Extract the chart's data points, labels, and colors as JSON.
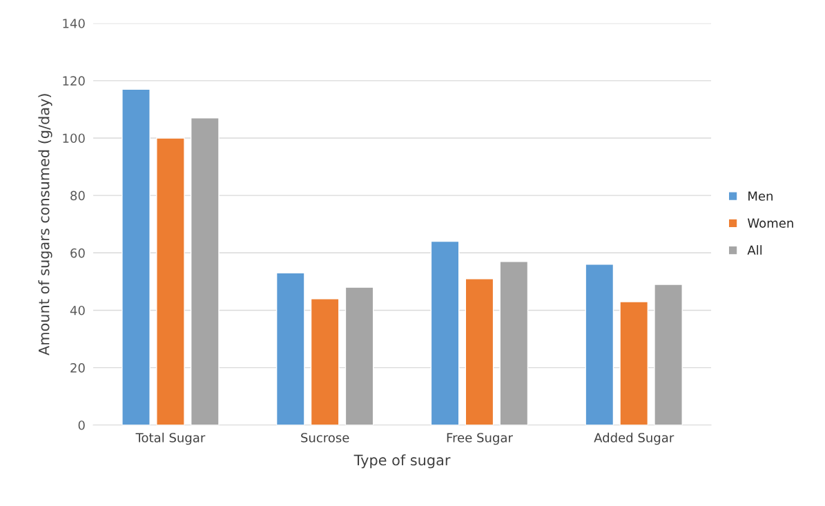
{
  "chart_data": {
    "type": "bar",
    "xlabel": "Type of sugar",
    "ylabel": "Amount of sugars consumed (g/day)",
    "categories": [
      "Total Sugar",
      "Sucrose",
      "Free Sugar",
      "Added Sugar"
    ],
    "series": [
      {
        "name": "Men",
        "color": "#5b9bd5",
        "values": [
          117,
          53,
          64,
          56
        ]
      },
      {
        "name": "Women",
        "color": "#ed7d31",
        "values": [
          100,
          44,
          51,
          43
        ]
      },
      {
        "name": "All",
        "color": "#a5a5a5",
        "values": [
          107,
          48,
          57,
          49
        ]
      }
    ],
    "ylim": [
      0,
      140
    ],
    "yticks": [
      0,
      20,
      40,
      60,
      80,
      100,
      120,
      140
    ],
    "grid": "y",
    "legend": "right"
  }
}
